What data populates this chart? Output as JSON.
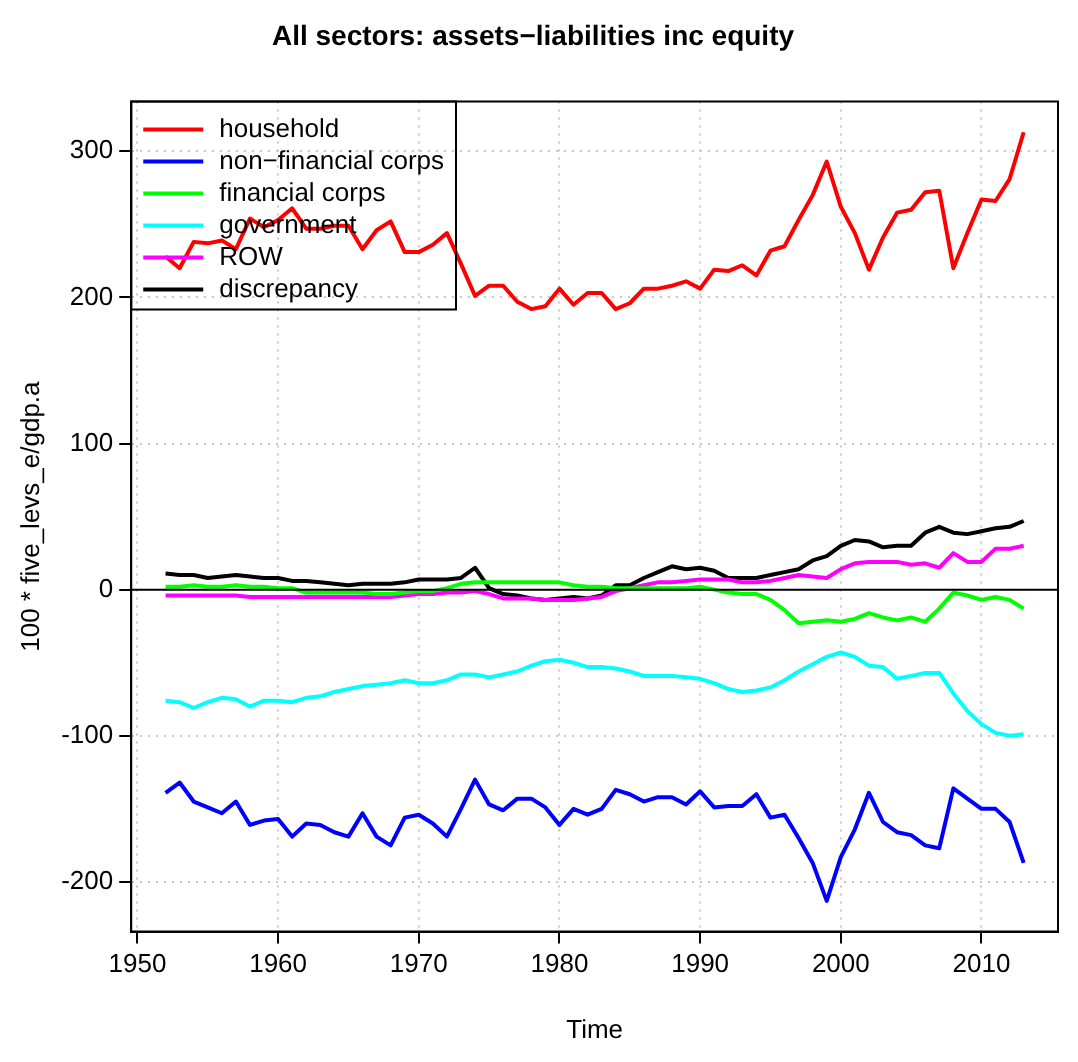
{
  "chart_data": {
    "type": "line",
    "title": "All sectors: assets−liabilities inc equity",
    "xlabel": "Time",
    "ylabel": "100 * five_levs_e/gdp.a",
    "x": [
      1952,
      1953,
      1954,
      1955,
      1956,
      1957,
      1958,
      1959,
      1960,
      1961,
      1962,
      1963,
      1964,
      1965,
      1966,
      1967,
      1968,
      1969,
      1970,
      1971,
      1972,
      1973,
      1974,
      1975,
      1976,
      1977,
      1978,
      1979,
      1980,
      1981,
      1982,
      1983,
      1984,
      1985,
      1986,
      1987,
      1988,
      1989,
      1990,
      1991,
      1992,
      1993,
      1994,
      1995,
      1996,
      1997,
      1998,
      1999,
      2000,
      2001,
      2002,
      2003,
      2004,
      2005,
      2006,
      2007,
      2008,
      2009,
      2010,
      2011,
      2012,
      2013
    ],
    "series": [
      {
        "name": "household",
        "color": "#ff0000",
        "values": [
          228,
          220,
          238,
          237,
          239,
          233,
          254,
          248,
          253,
          261,
          247,
          247,
          249,
          249,
          233,
          246,
          252,
          231,
          231,
          236,
          244,
          223,
          201,
          208,
          208,
          197,
          192,
          194,
          206,
          195,
          203,
          203,
          192,
          196,
          206,
          206,
          208,
          211,
          206,
          219,
          218,
          222,
          215,
          232,
          235,
          253,
          270,
          293,
          262,
          244,
          219,
          241,
          258,
          260,
          272,
          273,
          220,
          244,
          267,
          266,
          281,
          313
        ]
      },
      {
        "name": "non−financial corps",
        "color": "#0000ff",
        "values": [
          -139,
          -132,
          -145,
          -149,
          -153,
          -145,
          -161,
          -158,
          -157,
          -169,
          -160,
          -161,
          -166,
          -169,
          -153,
          -169,
          -175,
          -156,
          -154,
          -160,
          -169,
          -150,
          -130,
          -147,
          -151,
          -143,
          -143,
          -149,
          -161,
          -150,
          -154,
          -150,
          -137,
          -140,
          -145,
          -142,
          -142,
          -147,
          -138,
          -149,
          -148,
          -148,
          -140,
          -156,
          -154,
          -170,
          -187,
          -213,
          -183,
          -164,
          -139,
          -159,
          -166,
          -168,
          -175,
          -177,
          -136,
          -143,
          -150,
          -150,
          -159,
          -187
        ]
      },
      {
        "name": "financial corps",
        "color": "#00ff00",
        "values": [
          2,
          2,
          3,
          2,
          2,
          3,
          2,
          2,
          1,
          1,
          -2,
          -2,
          -2,
          -2,
          -2,
          -3,
          -3,
          -2,
          -1,
          -1,
          1,
          4,
          5,
          5,
          5,
          5,
          5,
          5,
          5,
          3,
          2,
          2,
          1,
          1,
          1,
          1,
          1,
          1,
          2,
          0,
          -2,
          -3,
          -3,
          -7,
          -14,
          -23,
          -22,
          -21,
          -22,
          -20,
          -16,
          -19,
          -21,
          -19,
          -22,
          -13,
          -2,
          -4,
          -7,
          -5,
          -7,
          -13
        ]
      },
      {
        "name": "government",
        "color": "#00ffff",
        "values": [
          -76,
          -77,
          -81,
          -77,
          -74,
          -75,
          -80,
          -76,
          -76,
          -77,
          -74,
          -73,
          -70,
          -68,
          -66,
          -65,
          -64,
          -62,
          -64,
          -64,
          -62,
          -58,
          -58,
          -60,
          -58,
          -56,
          -52,
          -49,
          -48,
          -50,
          -53,
          -53,
          -54,
          -56,
          -59,
          -59,
          -59,
          -60,
          -61,
          -64,
          -68,
          -70,
          -69,
          -67,
          -62,
          -56,
          -51,
          -46,
          -43,
          -46,
          -52,
          -53,
          -61,
          -59,
          -57,
          -57,
          -71,
          -83,
          -92,
          -98,
          -100,
          -99
        ]
      },
      {
        "name": "ROW",
        "color": "#ff00ff",
        "values": [
          -4,
          -4,
          -4,
          -4,
          -4,
          -4,
          -5,
          -5,
          -5,
          -5,
          -5,
          -5,
          -5,
          -5,
          -5,
          -5,
          -5,
          -4,
          -3,
          -3,
          -2,
          -2,
          -1,
          -3,
          -6,
          -6,
          -6,
          -7,
          -7,
          -7,
          -6,
          -5,
          -1,
          1,
          3,
          5,
          5,
          6,
          7,
          7,
          7,
          5,
          5,
          6,
          8,
          10,
          9,
          8,
          14,
          18,
          19,
          19,
          19,
          17,
          18,
          15,
          25,
          19,
          19,
          28,
          28,
          30
        ]
      },
      {
        "name": "discrepancy",
        "color": "#000000",
        "values": [
          11,
          10,
          10,
          8,
          9,
          10,
          9,
          8,
          8,
          6,
          6,
          5,
          4,
          3,
          4,
          4,
          4,
          5,
          7,
          7,
          7,
          8,
          15,
          1,
          -3,
          -4,
          -6,
          -7,
          -6,
          -5,
          -6,
          -4,
          3,
          3,
          8,
          12,
          16,
          14,
          15,
          13,
          8,
          8,
          8,
          10,
          12,
          14,
          20,
          23,
          30,
          34,
          33,
          29,
          30,
          30,
          39,
          43,
          39,
          38,
          40,
          42,
          43,
          47
        ]
      }
    ],
    "xlim": [
      1949.56,
      2015.44
    ],
    "ylim": [
      -234,
      334
    ],
    "xticks": [
      1950,
      1960,
      1970,
      1980,
      1990,
      2000,
      2010
    ],
    "yticks": [
      -200,
      -100,
      0,
      100,
      200,
      300
    ],
    "ref_lines": [
      {
        "axis": "y",
        "value": 0,
        "color": "#000000"
      }
    ],
    "grid": true,
    "legend": "top left",
    "marker": "none",
    "line_style": "solid"
  }
}
